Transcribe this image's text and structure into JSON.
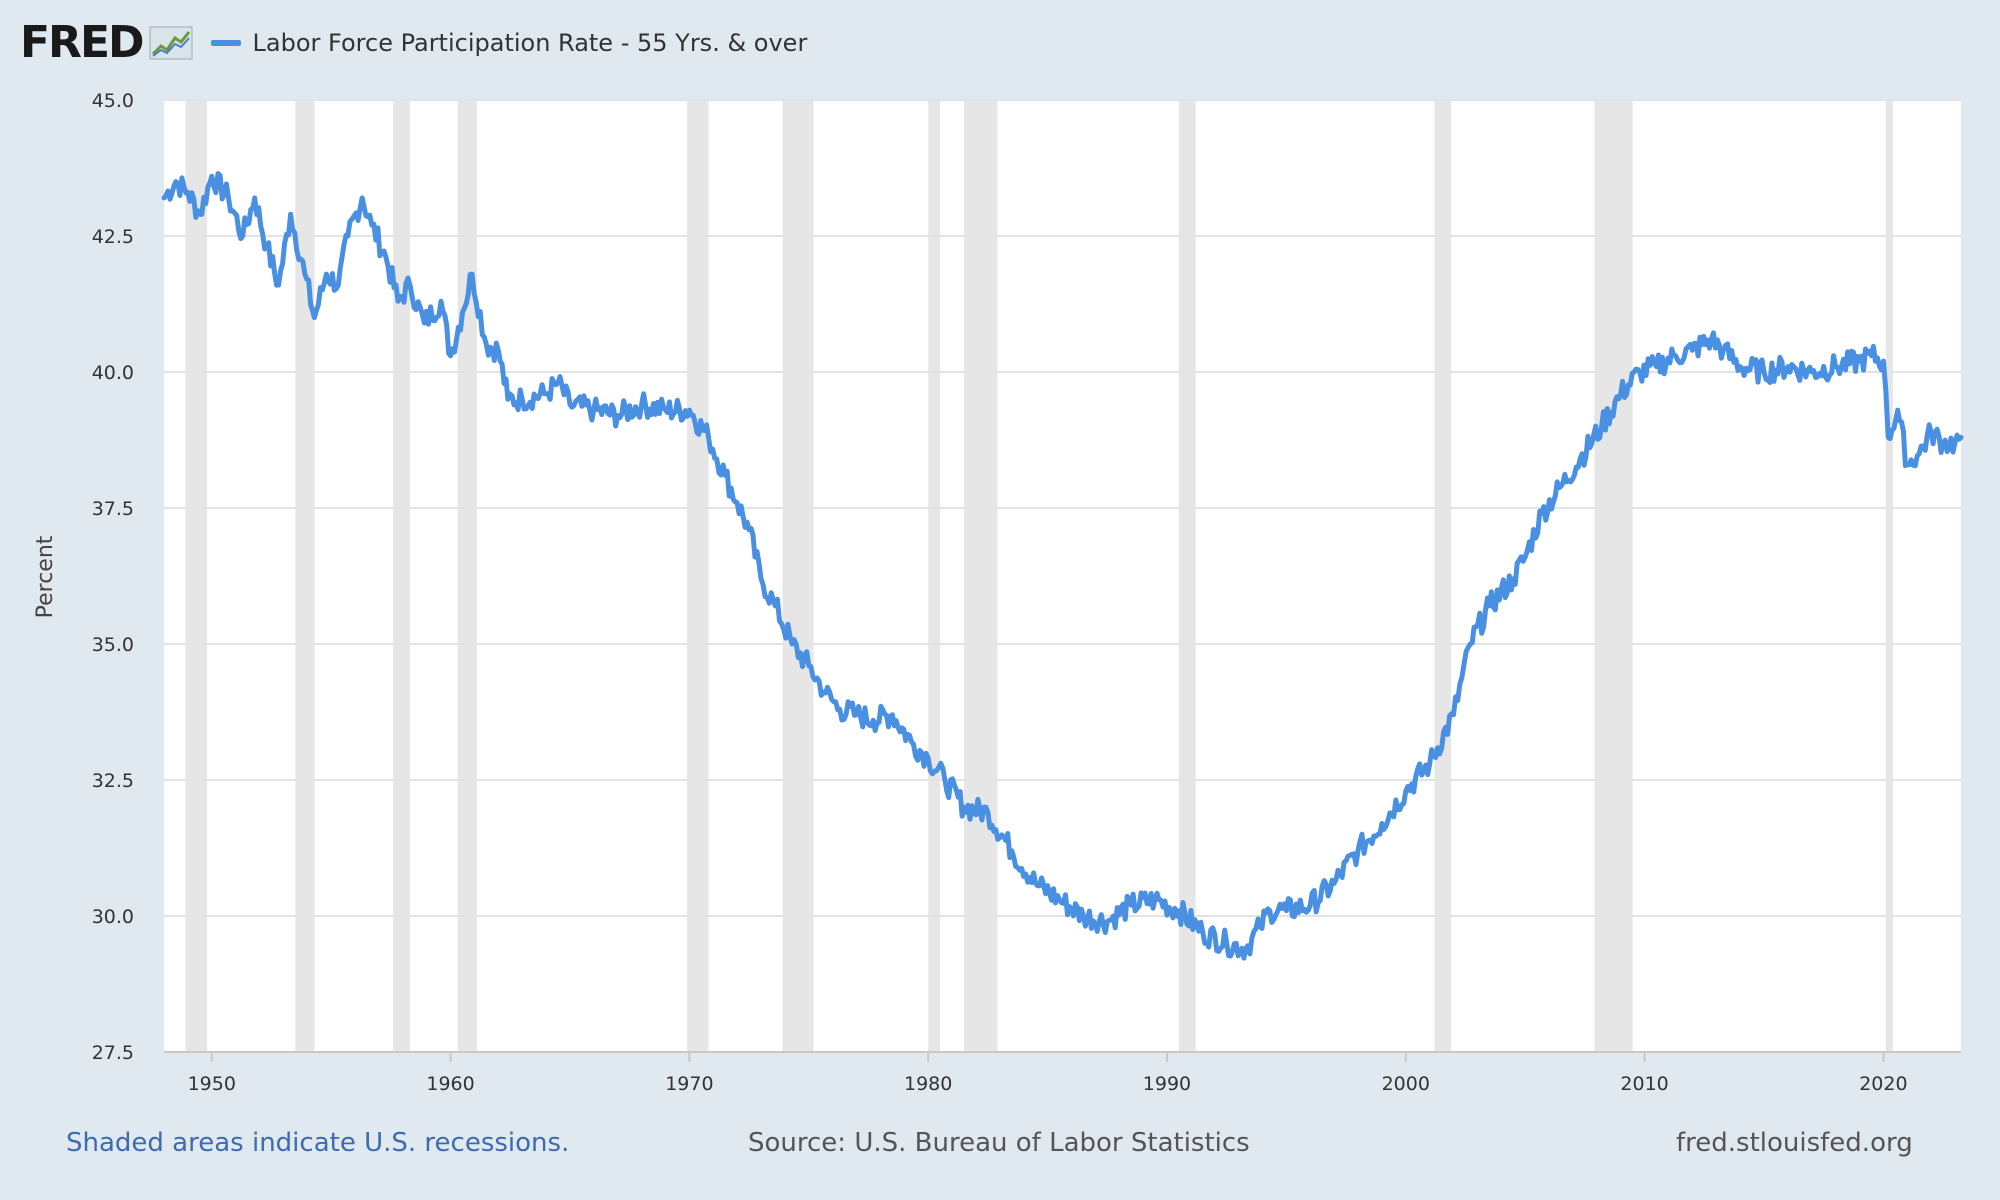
{
  "brand": {
    "logo_text": "FRED",
    "logo_icon": "trend-line-icon"
  },
  "legend": {
    "label": "Labor Force Participation Rate - 55 Yrs. & over",
    "color": "#4a90e2"
  },
  "footer": {
    "recession_note": "Shaded areas indicate U.S. recessions.",
    "source": "Source: U.S. Bureau of Labor Statistics",
    "site": "fred.stlouisfed.org"
  },
  "colors": {
    "background": "#e1e9f0",
    "plot_bg": "#ffffff",
    "recession": "#e6e6e6",
    "grid": "#e3e3e3",
    "line": "#4a90e2",
    "note": "#3c6bb0"
  },
  "chart_data": {
    "type": "line",
    "title": "",
    "ylabel": "Percent",
    "xlabel": "",
    "xlim": [
      1948.0,
      2023.25
    ],
    "ylim": [
      27.5,
      45.0
    ],
    "yticks": [
      "27.5",
      "30.0",
      "32.5",
      "35.0",
      "37.5",
      "40.0",
      "42.5",
      "45.0"
    ],
    "xticks": [
      "1950",
      "1960",
      "1970",
      "1980",
      "1990",
      "2000",
      "2010",
      "2020"
    ],
    "grid": true,
    "recessions": [
      [
        1948.9,
        1949.8
      ],
      [
        1953.5,
        1954.3
      ],
      [
        1957.6,
        1958.3
      ],
      [
        1960.3,
        1961.1
      ],
      [
        1969.9,
        1970.8
      ],
      [
        1973.9,
        1975.2
      ],
      [
        1980.0,
        1980.5
      ],
      [
        1981.5,
        1982.9
      ],
      [
        1990.5,
        1991.2
      ],
      [
        2001.2,
        2001.9
      ],
      [
        2007.9,
        2009.5
      ],
      [
        2020.1,
        2020.4
      ]
    ],
    "series": [
      {
        "values": [
          [
            1948.0,
            43.2
          ],
          [
            1948.5,
            43.5
          ],
          [
            1949.0,
            43.3
          ],
          [
            1949.5,
            42.9
          ],
          [
            1950.0,
            43.6
          ],
          [
            1950.7,
            43.2
          ],
          [
            1951.3,
            42.5
          ],
          [
            1951.8,
            43.2
          ],
          [
            1952.3,
            42.3
          ],
          [
            1952.8,
            41.6
          ],
          [
            1953.3,
            42.9
          ],
          [
            1953.9,
            41.8
          ],
          [
            1954.3,
            41.0
          ],
          [
            1954.8,
            41.8
          ],
          [
            1955.3,
            41.6
          ],
          [
            1955.7,
            42.5
          ],
          [
            1956.3,
            43.2
          ],
          [
            1956.7,
            42.7
          ],
          [
            1957.3,
            42.1
          ],
          [
            1957.8,
            41.3
          ],
          [
            1958.3,
            41.6
          ],
          [
            1958.9,
            40.9
          ],
          [
            1959.6,
            41.3
          ],
          [
            1960.0,
            40.3
          ],
          [
            1960.5,
            41.1
          ],
          [
            1960.9,
            41.8
          ],
          [
            1961.5,
            40.5
          ],
          [
            1962.0,
            40.4
          ],
          [
            1962.4,
            39.5
          ],
          [
            1963.0,
            39.5
          ],
          [
            1964.0,
            39.6
          ],
          [
            1964.5,
            39.8
          ],
          [
            1965.0,
            39.4
          ],
          [
            1966.0,
            39.3
          ],
          [
            1967.0,
            39.2
          ],
          [
            1968.0,
            39.4
          ],
          [
            1969.0,
            39.3
          ],
          [
            1970.0,
            39.3
          ],
          [
            1970.8,
            38.8
          ],
          [
            1971.5,
            38.1
          ],
          [
            1972.0,
            37.6
          ],
          [
            1972.5,
            37.1
          ],
          [
            1973.0,
            36.2
          ],
          [
            1973.6,
            35.7
          ],
          [
            1974.3,
            35.0
          ],
          [
            1975.0,
            34.6
          ],
          [
            1975.7,
            34.1
          ],
          [
            1976.3,
            33.8
          ],
          [
            1977.0,
            33.7
          ],
          [
            1977.7,
            33.6
          ],
          [
            1978.5,
            33.7
          ],
          [
            1979.3,
            33.2
          ],
          [
            1980.0,
            32.9
          ],
          [
            1980.7,
            32.5
          ],
          [
            1981.5,
            32.0
          ],
          [
            1982.5,
            31.9
          ],
          [
            1983.5,
            31.2
          ],
          [
            1984.5,
            30.6
          ],
          [
            1985.5,
            30.3
          ],
          [
            1986.5,
            30.0
          ],
          [
            1987.5,
            29.9
          ],
          [
            1988.5,
            30.2
          ],
          [
            1989.5,
            30.3
          ],
          [
            1990.5,
            30.1
          ],
          [
            1991.5,
            29.7
          ],
          [
            1992.5,
            29.5
          ],
          [
            1993.3,
            29.4
          ],
          [
            1993.9,
            29.8
          ],
          [
            1994.3,
            30.1
          ],
          [
            1995.0,
            30.1
          ],
          [
            1996.0,
            30.2
          ],
          [
            1997.0,
            30.6
          ],
          [
            1998.0,
            31.2
          ],
          [
            1999.0,
            31.7
          ],
          [
            2000.0,
            32.3
          ],
          [
            2001.0,
            32.8
          ],
          [
            2002.0,
            33.7
          ],
          [
            2002.7,
            35.0
          ],
          [
            2003.5,
            35.7
          ],
          [
            2004.5,
            36.2
          ],
          [
            2005.0,
            36.6
          ],
          [
            2005.7,
            37.4
          ],
          [
            2006.5,
            37.9
          ],
          [
            2007.3,
            38.4
          ],
          [
            2008.2,
            39.0
          ],
          [
            2009.0,
            39.6
          ],
          [
            2009.8,
            40.0
          ],
          [
            2010.5,
            40.1
          ],
          [
            2011.3,
            40.3
          ],
          [
            2012.0,
            40.4
          ],
          [
            2012.8,
            40.6
          ],
          [
            2013.3,
            40.4
          ],
          [
            2014.0,
            40.1
          ],
          [
            2015.0,
            40.0
          ],
          [
            2016.0,
            40.1
          ],
          [
            2017.0,
            40.0
          ],
          [
            2018.0,
            40.1
          ],
          [
            2019.0,
            40.2
          ],
          [
            2019.5,
            40.3
          ],
          [
            2020.0,
            40.2
          ],
          [
            2020.2,
            38.8
          ],
          [
            2020.6,
            39.3
          ],
          [
            2021.0,
            38.3
          ],
          [
            2021.5,
            38.5
          ],
          [
            2022.0,
            38.9
          ],
          [
            2022.5,
            38.7
          ],
          [
            2023.0,
            38.7
          ],
          [
            2023.25,
            38.8
          ]
        ]
      }
    ]
  }
}
